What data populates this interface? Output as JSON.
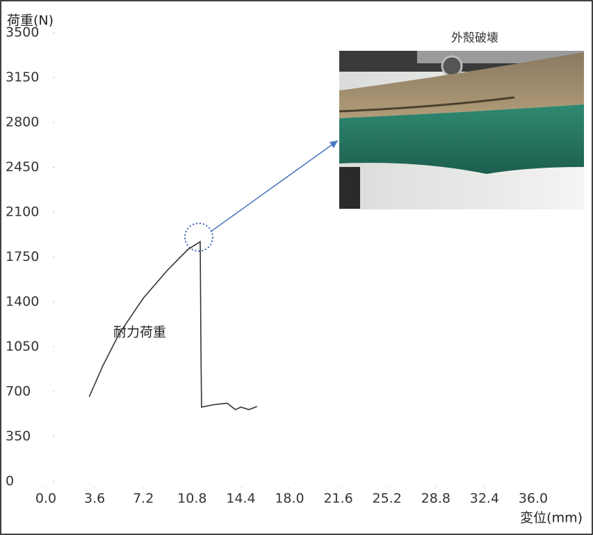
{
  "chart_data": {
    "type": "line",
    "y_label": "荷重(N)",
    "x_label": "変位(mm)",
    "annotations": [
      "耐力荷重",
      "外殻破壊"
    ],
    "x": [
      3.2,
      4.2,
      5.4,
      7.2,
      9.0,
      10.5,
      11.4,
      11.45,
      11.5,
      12.5,
      13.4,
      14.0,
      14.4,
      15.0,
      15.6
    ],
    "series": [
      {
        "name": "荷重",
        "color": "#333333",
        "values": [
          660,
          900,
          1150,
          1430,
          1650,
          1810,
          1870,
          1060,
          580,
          600,
          610,
          560,
          580,
          560,
          585
        ]
      }
    ],
    "xlim": [
      0,
      36
    ],
    "xticks": [
      {
        "value": 0,
        "label": "0.0"
      },
      3.6,
      7.2,
      10.8,
      14.4,
      {
        "value": 18,
        "label": "18.0"
      },
      21.6,
      25.2,
      28.8,
      32.4,
      {
        "value": 36,
        "label": "36.0"
      }
    ],
    "ylim": [
      0,
      3500
    ],
    "yticks": [
      0,
      350,
      700,
      1050,
      1400,
      1750,
      2100,
      2450,
      2800,
      3150,
      3500
    ]
  }
}
